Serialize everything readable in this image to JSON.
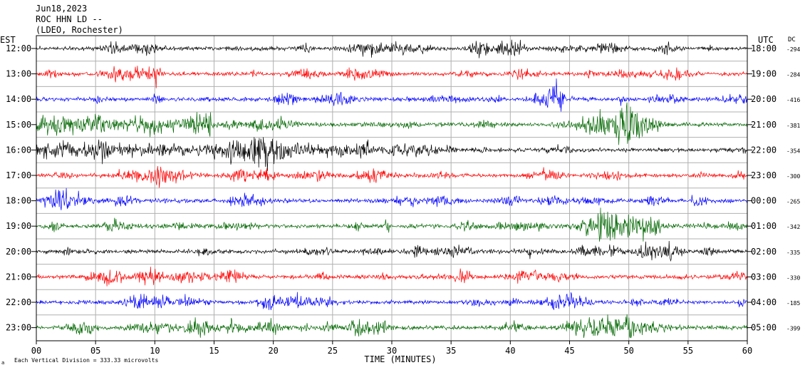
{
  "header": {
    "line1": "Jun18,2023",
    "line2": "ROC HHN LD --",
    "line3": "(LDEO, Rochester)"
  },
  "left_axis_title": "EST",
  "right_axis_title": "UTC",
  "dc_title": "DC",
  "footnote": "Each Vertical Division =  333.33 microvolts",
  "footnote_mark": "a",
  "chart_data": {
    "type": "line",
    "title": "",
    "xlabel": "TIME (MINUTES)",
    "ylabel": "",
    "xlim": [
      0,
      60
    ],
    "x_ticks": [
      "00",
      "05",
      "10",
      "15",
      "20",
      "25",
      "30",
      "35",
      "40",
      "45",
      "50",
      "55",
      "60"
    ],
    "grid": true,
    "colors": {
      "black": "#000000",
      "red": "#ff0000",
      "blue": "#0000ff",
      "green": "#006600"
    },
    "series": [
      {
        "est": "12:00",
        "utc": "18:00",
        "dc": "-294",
        "color": "black"
      },
      {
        "est": "13:00",
        "utc": "19:00",
        "dc": "-284",
        "color": "red"
      },
      {
        "est": "14:00",
        "utc": "20:00",
        "dc": "-416",
        "color": "blue"
      },
      {
        "est": "15:00",
        "utc": "21:00",
        "dc": "-381",
        "color": "green"
      },
      {
        "est": "16:00",
        "utc": "22:00",
        "dc": "-354",
        "color": "black"
      },
      {
        "est": "17:00",
        "utc": "23:00",
        "dc": "-300",
        "color": "red"
      },
      {
        "est": "18:00",
        "utc": "00:00",
        "dc": "-265",
        "color": "blue"
      },
      {
        "est": "19:00",
        "utc": "01:00",
        "dc": "-342",
        "color": "green"
      },
      {
        "est": "20:00",
        "utc": "02:00",
        "dc": "-335",
        "color": "black"
      },
      {
        "est": "21:00",
        "utc": "03:00",
        "dc": "-330",
        "color": "red"
      },
      {
        "est": "22:00",
        "utc": "04:00",
        "dc": "-185",
        "color": "blue"
      },
      {
        "est": "23:00",
        "utc": "05:00",
        "dc": "-399",
        "color": "green"
      }
    ]
  }
}
